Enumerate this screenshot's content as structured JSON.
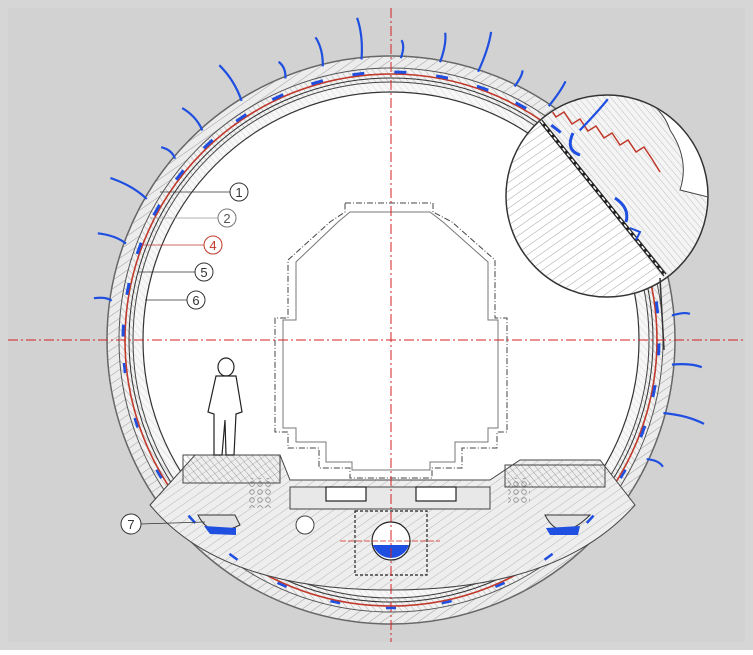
{
  "diagram": {
    "callouts": [
      {
        "label": "1",
        "color": "#333333"
      },
      {
        "label": "2",
        "color": "#555555"
      },
      {
        "label": "4",
        "color": "#c0392b"
      },
      {
        "label": "5",
        "color": "#333333"
      },
      {
        "label": "6",
        "color": "#333333"
      },
      {
        "label": "7",
        "color": "#333333"
      }
    ],
    "colors": {
      "background": "#d6d6d6",
      "lining": "#f4f4f4",
      "interior": "#ffffff",
      "hatch": "#7a7a7a",
      "membrane": "#c0392b",
      "water": "#1f4fe0",
      "centerline": "#d62020",
      "outline": "#222222"
    },
    "icons": [
      "water-inflow-arrow-icon",
      "person-figure-icon",
      "drain-pipe-icon",
      "detail-magnifier-icon"
    ]
  }
}
